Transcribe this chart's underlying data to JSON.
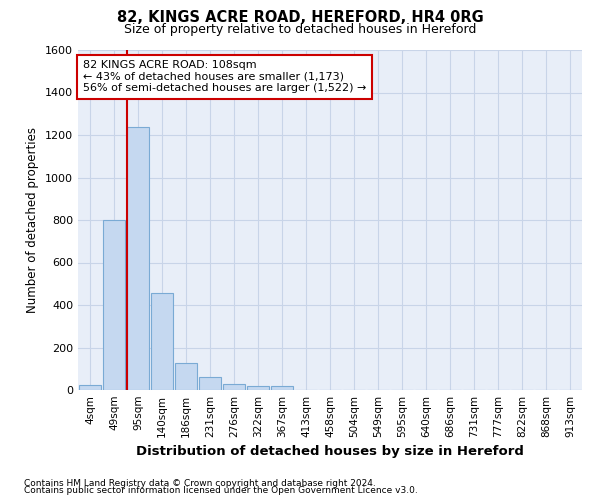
{
  "title1": "82, KINGS ACRE ROAD, HEREFORD, HR4 0RG",
  "title2": "Size of property relative to detached houses in Hereford",
  "xlabel": "Distribution of detached houses by size in Hereford",
  "ylabel": "Number of detached properties",
  "categories": [
    "4sqm",
    "49sqm",
    "95sqm",
    "140sqm",
    "186sqm",
    "231sqm",
    "276sqm",
    "322sqm",
    "367sqm",
    "413sqm",
    "458sqm",
    "504sqm",
    "549sqm",
    "595sqm",
    "640sqm",
    "686sqm",
    "731sqm",
    "777sqm",
    "822sqm",
    "868sqm",
    "913sqm"
  ],
  "values": [
    25,
    800,
    1240,
    455,
    128,
    63,
    28,
    18,
    18,
    0,
    0,
    0,
    0,
    0,
    0,
    0,
    0,
    0,
    0,
    0,
    0
  ],
  "bar_color": "#c5d8f0",
  "bar_edge_color": "#7aaad4",
  "vline_color": "#cc0000",
  "annotation_text": "82 KINGS ACRE ROAD: 108sqm\n← 43% of detached houses are smaller (1,173)\n56% of semi-detached houses are larger (1,522) →",
  "annotation_box_color": "white",
  "annotation_box_edge": "#cc0000",
  "ylim": [
    0,
    1600
  ],
  "yticks": [
    0,
    200,
    400,
    600,
    800,
    1000,
    1200,
    1400,
    1600
  ],
  "grid_color": "#c8d4e8",
  "bg_color": "#e8eef8",
  "footer1": "Contains HM Land Registry data © Crown copyright and database right 2024.",
  "footer2": "Contains public sector information licensed under the Open Government Licence v3.0."
}
